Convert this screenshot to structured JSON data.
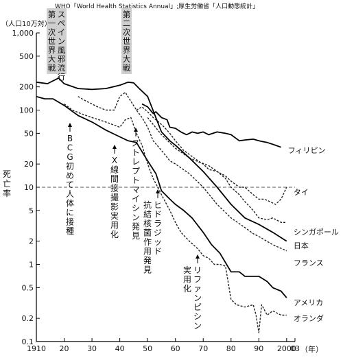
{
  "source": "WHO「World Health Statistics Annual」;厚生労働省「人口動態統計」",
  "ylabel_unit": "（人口10万対）",
  "ylabel": "死亡率",
  "xlabel_unit": "（年）",
  "chart_data": {
    "type": "line",
    "scale_y": "log",
    "xlim": [
      1910,
      2003
    ],
    "ylim": [
      0.1,
      1000
    ],
    "x_ticks": [
      1910,
      20,
      30,
      40,
      50,
      60,
      70,
      80,
      90,
      2000,
      "03"
    ],
    "y_ticks": [
      "0.1",
      "0.2",
      "0.5",
      "1",
      "2",
      "5",
      "10",
      "20",
      "50",
      "100",
      "200",
      "500",
      "1,000"
    ],
    "reference_line": {
      "y": 10,
      "style": "dashed"
    },
    "events": [
      {
        "label": "第一次世界大戦",
        "x_start": 1914,
        "x_end": 1918,
        "shaded": true
      },
      {
        "label": "スペイン風邪流行",
        "x_start": 1918,
        "x_end": 1920,
        "shaded": true
      },
      {
        "label": "第二次世界大戦",
        "x_start": 1939,
        "x_end": 1945,
        "shaded": true
      },
      {
        "label": "BCG初めて人体に接種",
        "x": 1921
      },
      {
        "label": "X線間接撮影実用化",
        "x": 1936
      },
      {
        "label": "ストレプトマイシン発見",
        "x": 1944
      },
      {
        "label": "ヒドラジッド抗結核菌作用発見",
        "x": 1952
      },
      {
        "label": "リファンピシン実用化",
        "x": 1966
      }
    ],
    "series": [
      {
        "name": "フィリピン",
        "style": "solid",
        "x": [
          1948,
          1950,
          1952,
          1953,
          1955,
          1957,
          1958,
          1960,
          1962,
          1964,
          1966,
          1968,
          1970,
          1972,
          1975,
          1978,
          1980,
          1983,
          1985,
          1988,
          1990,
          1993,
          1995,
          1998
        ],
        "y": [
          120,
          110,
          90,
          95,
          80,
          75,
          60,
          58,
          52,
          48,
          52,
          50,
          52,
          48,
          52,
          50,
          48,
          40,
          41,
          42,
          40,
          38,
          36,
          33
        ]
      },
      {
        "name": "タイ",
        "style": "dotted",
        "x": [
          1950,
          1955,
          1960,
          1965,
          1970,
          1972,
          1975,
          1978,
          1980,
          1983,
          1985,
          1988,
          1990,
          1992,
          1994,
          1996,
          1998,
          2000
        ],
        "y": [
          80,
          48,
          32,
          24,
          20,
          17,
          16,
          14,
          12,
          10,
          10,
          8,
          7,
          7,
          6.5,
          6,
          7,
          10
        ]
      },
      {
        "name": "シンガポール",
        "style": "dotted",
        "x": [
          1946,
          1948,
          1950,
          1952,
          1954,
          1956,
          1958,
          1960,
          1963,
          1966,
          1969,
          1972,
          1975,
          1978,
          1980,
          1983,
          1985,
          1988,
          1990,
          1993,
          1995,
          1998,
          2000
        ],
        "y": [
          100,
          110,
          95,
          80,
          70,
          60,
          50,
          40,
          30,
          25,
          21,
          19,
          16,
          13,
          10,
          8,
          6.5,
          5,
          4,
          3.8,
          4,
          3.5,
          3.5
        ]
      },
      {
        "name": "日本",
        "style": "solid",
        "x": [
          1910,
          1914,
          1918,
          1920,
          1925,
          1930,
          1935,
          1940,
          1943,
          1945,
          1947,
          1950,
          1955,
          1958,
          1960,
          1965,
          1970,
          1975,
          1980,
          1985,
          1990,
          1995,
          2000
        ],
        "y": [
          230,
          220,
          260,
          220,
          190,
          185,
          190,
          210,
          230,
          225,
          190,
          150,
          52,
          40,
          35,
          24,
          16,
          10,
          6,
          4,
          3.3,
          2.6,
          2
        ]
      },
      {
        "name": "フランス",
        "style": "dotted",
        "x": [
          1925,
          1928,
          1930,
          1932,
          1935,
          1938,
          1940,
          1942,
          1944,
          1946,
          1948,
          1950,
          1952,
          1955,
          1958,
          1960,
          1965,
          1970,
          1975,
          1980,
          1985,
          1988,
          1990,
          1995,
          2000
        ],
        "y": [
          150,
          130,
          120,
          110,
          100,
          100,
          150,
          170,
          130,
          100,
          80,
          60,
          40,
          30,
          22,
          20,
          15,
          10,
          6,
          4,
          3,
          2.5,
          2.3,
          1.8,
          1.5
        ]
      },
      {
        "name": "アメリカ",
        "style": "solid",
        "x": [
          1910,
          1913,
          1916,
          1920,
          1925,
          1930,
          1935,
          1940,
          1943,
          1946,
          1950,
          1953,
          1955,
          1958,
          1960,
          1963,
          1966,
          1970,
          1973,
          1976,
          1980,
          1983,
          1985,
          1988,
          1990,
          1993,
          1995,
          1998,
          2000
        ],
        "y": [
          150,
          140,
          140,
          115,
          85,
          70,
          55,
          45,
          40,
          38,
          22,
          15,
          9,
          7,
          6,
          5,
          4,
          2.6,
          1.8,
          1.4,
          0.8,
          0.8,
          0.7,
          0.7,
          0.7,
          0.6,
          0.5,
          0.45,
          0.37
        ]
      },
      {
        "name": "オランダ",
        "style": "dotted",
        "x": [
          1920,
          1923,
          1926,
          1930,
          1935,
          1940,
          1942,
          1944,
          1946,
          1948,
          1950,
          1952,
          1955,
          1958,
          1960,
          1962,
          1965,
          1968,
          1970,
          1972,
          1974,
          1976,
          1978,
          1980,
          1982,
          1985,
          1988,
          1989,
          1990,
          1991,
          1993,
          1995,
          1998,
          2000
        ],
        "y": [
          120,
          100,
          90,
          80,
          70,
          60,
          75,
          80,
          50,
          35,
          20,
          13,
          8,
          5,
          3.5,
          2.6,
          2,
          1.6,
          1.3,
          1.2,
          1.0,
          1.0,
          0.95,
          0.35,
          0.3,
          0.28,
          0.3,
          0.22,
          0.13,
          0.3,
          0.22,
          0.25,
          0.22,
          0.22
        ]
      }
    ]
  }
}
